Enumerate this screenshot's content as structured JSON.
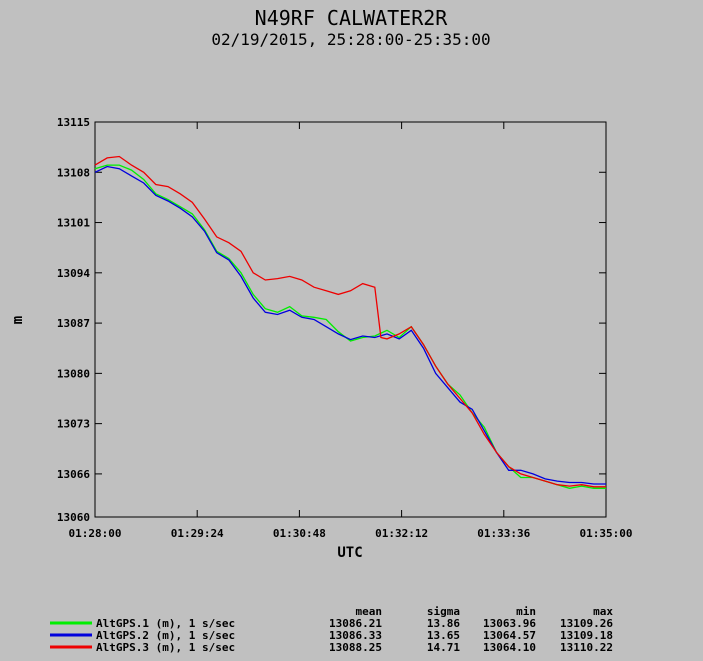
{
  "chart_data": {
    "type": "line",
    "title": "N49RF CALWATER2R",
    "subtitle": "02/19/2015, 25:28:00-25:35:00",
    "xlabel": "UTC",
    "ylabel": "m",
    "xlim": [
      "01:28:00",
      "01:35:00"
    ],
    "ylim": [
      13060,
      13115
    ],
    "x_ticks": [
      "01:28:00",
      "01:29:24",
      "01:30:48",
      "01:32:12",
      "01:33:36",
      "01:35:00"
    ],
    "y_ticks": [
      "13115",
      "13108",
      "13101",
      "13094",
      "13087",
      "13080",
      "13073",
      "13066",
      "13060"
    ],
    "grid": false,
    "legend_position": "bottom-left",
    "stats_headers": [
      "mean",
      "sigma",
      "min",
      "max"
    ],
    "series": [
      {
        "name": "AltGPS.1 (m), 1 s/sec",
        "color": "#00ee00",
        "stats": [
          "13086.21",
          "13.86",
          "13063.96",
          "13109.26"
        ],
        "points": [
          [
            "01:28:00",
            13108.5
          ],
          [
            "01:28:10",
            13109.0
          ],
          [
            "01:28:20",
            13109.0
          ],
          [
            "01:28:30",
            13108.3
          ],
          [
            "01:28:40",
            13107.0
          ],
          [
            "01:28:50",
            13105.0
          ],
          [
            "01:29:00",
            13104.2
          ],
          [
            "01:29:10",
            13103.2
          ],
          [
            "01:29:20",
            13102.2
          ],
          [
            "01:29:30",
            13100.0
          ],
          [
            "01:29:40",
            13097.0
          ],
          [
            "01:29:50",
            13096.0
          ],
          [
            "01:30:00",
            13094.0
          ],
          [
            "01:30:10",
            13091.0
          ],
          [
            "01:30:20",
            13089.0
          ],
          [
            "01:30:30",
            13088.5
          ],
          [
            "01:30:40",
            13089.3
          ],
          [
            "01:30:50",
            13088.0
          ],
          [
            "01:31:00",
            13087.8
          ],
          [
            "01:31:10",
            13087.5
          ],
          [
            "01:31:20",
            13085.8
          ],
          [
            "01:31:30",
            13084.5
          ],
          [
            "01:31:40",
            13085.0
          ],
          [
            "01:31:50",
            13085.2
          ],
          [
            "01:32:00",
            13086.0
          ],
          [
            "01:32:10",
            13085.0
          ],
          [
            "01:32:20",
            13086.5
          ],
          [
            "01:32:30",
            13084.0
          ],
          [
            "01:32:40",
            13081.0
          ],
          [
            "01:32:50",
            13078.5
          ],
          [
            "01:33:00",
            13077.0
          ],
          [
            "01:33:10",
            13074.5
          ],
          [
            "01:33:20",
            13072.5
          ],
          [
            "01:33:30",
            13069.0
          ],
          [
            "01:33:40",
            13067.0
          ],
          [
            "01:33:50",
            13065.5
          ],
          [
            "01:34:00",
            13065.5
          ],
          [
            "01:34:10",
            13065.0
          ],
          [
            "01:34:20",
            13064.5
          ],
          [
            "01:34:30",
            13064.0
          ],
          [
            "01:34:40",
            13064.3
          ],
          [
            "01:34:50",
            13064.0
          ],
          [
            "01:35:00",
            13064.0
          ]
        ]
      },
      {
        "name": "AltGPS.2 (m), 1 s/sec",
        "color": "#0000dd",
        "stats": [
          "13086.33",
          "13.65",
          "13064.57",
          "13109.18"
        ],
        "points": [
          [
            "01:28:00",
            13108.0
          ],
          [
            "01:28:10",
            13108.8
          ],
          [
            "01:28:20",
            13108.5
          ],
          [
            "01:28:30",
            13107.5
          ],
          [
            "01:28:40",
            13106.5
          ],
          [
            "01:28:50",
            13104.8
          ],
          [
            "01:29:00",
            13104.0
          ],
          [
            "01:29:10",
            13103.0
          ],
          [
            "01:29:20",
            13101.8
          ],
          [
            "01:29:30",
            13099.8
          ],
          [
            "01:29:40",
            13096.8
          ],
          [
            "01:29:50",
            13095.8
          ],
          [
            "01:30:00",
            13093.5
          ],
          [
            "01:30:10",
            13090.5
          ],
          [
            "01:30:20",
            13088.5
          ],
          [
            "01:30:30",
            13088.2
          ],
          [
            "01:30:40",
            13088.8
          ],
          [
            "01:30:50",
            13087.8
          ],
          [
            "01:31:00",
            13087.5
          ],
          [
            "01:31:10",
            13086.5
          ],
          [
            "01:31:20",
            13085.5
          ],
          [
            "01:31:30",
            13084.7
          ],
          [
            "01:31:40",
            13085.2
          ],
          [
            "01:31:50",
            13085.0
          ],
          [
            "01:32:00",
            13085.5
          ],
          [
            "01:32:10",
            13084.8
          ],
          [
            "01:32:20",
            13086.0
          ],
          [
            "01:32:30",
            13083.5
          ],
          [
            "01:32:40",
            13080.0
          ],
          [
            "01:32:50",
            13078.0
          ],
          [
            "01:33:00",
            13076.0
          ],
          [
            "01:33:10",
            13075.0
          ],
          [
            "01:33:20",
            13072.0
          ],
          [
            "01:33:30",
            13069.0
          ],
          [
            "01:33:40",
            13066.5
          ],
          [
            "01:33:50",
            13066.5
          ],
          [
            "01:34:00",
            13066.0
          ],
          [
            "01:34:10",
            13065.3
          ],
          [
            "01:34:20",
            13065.0
          ],
          [
            "01:34:30",
            13064.8
          ],
          [
            "01:34:40",
            13064.8
          ],
          [
            "01:34:50",
            13064.6
          ],
          [
            "01:35:00",
            13064.6
          ]
        ]
      },
      {
        "name": "AltGPS.3 (m), 1 s/sec",
        "color": "#ee0000",
        "stats": [
          "13088.25",
          "14.71",
          "13064.10",
          "13110.22"
        ],
        "points": [
          [
            "01:28:00",
            13109.0
          ],
          [
            "01:28:10",
            13110.0
          ],
          [
            "01:28:20",
            13110.2
          ],
          [
            "01:28:30",
            13109.0
          ],
          [
            "01:28:40",
            13108.0
          ],
          [
            "01:28:50",
            13106.3
          ],
          [
            "01:29:00",
            13106.0
          ],
          [
            "01:29:10",
            13105.0
          ],
          [
            "01:29:20",
            13103.8
          ],
          [
            "01:29:30",
            13101.5
          ],
          [
            "01:29:40",
            13099.0
          ],
          [
            "01:29:50",
            13098.2
          ],
          [
            "01:30:00",
            13097.0
          ],
          [
            "01:30:10",
            13094.0
          ],
          [
            "01:30:20",
            13093.0
          ],
          [
            "01:30:30",
            13093.2
          ],
          [
            "01:30:40",
            13093.5
          ],
          [
            "01:30:50",
            13093.0
          ],
          [
            "01:31:00",
            13092.0
          ],
          [
            "01:31:10",
            13091.5
          ],
          [
            "01:31:20",
            13091.0
          ],
          [
            "01:31:30",
            13091.5
          ],
          [
            "01:31:40",
            13092.5
          ],
          [
            "01:31:50",
            13092.0
          ],
          [
            "01:31:55",
            13085.0
          ],
          [
            "01:32:00",
            13084.8
          ],
          [
            "01:32:10",
            13085.5
          ],
          [
            "01:32:20",
            13086.5
          ],
          [
            "01:32:30",
            13084.0
          ],
          [
            "01:32:40",
            13081.0
          ],
          [
            "01:32:50",
            13078.5
          ],
          [
            "01:33:00",
            13076.5
          ],
          [
            "01:33:10",
            13074.5
          ],
          [
            "01:33:20",
            13071.5
          ],
          [
            "01:33:30",
            13069.0
          ],
          [
            "01:33:40",
            13067.0
          ],
          [
            "01:33:50",
            13066.0
          ],
          [
            "01:34:00",
            13065.5
          ],
          [
            "01:34:10",
            13065.0
          ],
          [
            "01:34:20",
            13064.5
          ],
          [
            "01:34:30",
            13064.3
          ],
          [
            "01:34:40",
            13064.5
          ],
          [
            "01:34:50",
            13064.2
          ],
          [
            "01:35:00",
            13064.2
          ]
        ]
      }
    ]
  }
}
